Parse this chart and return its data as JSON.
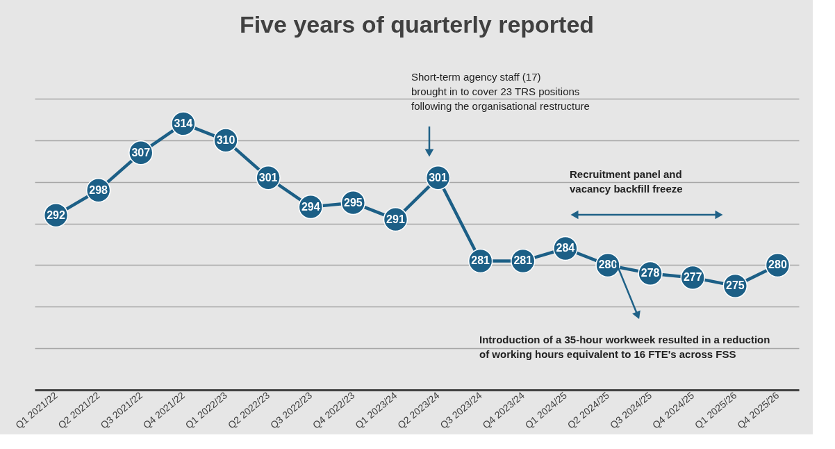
{
  "chart_data": {
    "type": "line",
    "title": "Five years of quarterly reported",
    "categories": [
      "Q1 2021/22",
      "Q2 2021/22",
      "Q3 2021/22",
      "Q4 2021/22",
      "Q1 2022/23",
      "Q2 2022/23",
      "Q3 2022/23",
      "Q4 2022/23",
      "Q1 2023/24",
      "Q2 2023/24",
      "Q3 2023/24",
      "Q4 2023/24",
      "Q1 2024/25",
      "Q2 2024/25",
      "Q3 2024/25",
      "Q4 2024/25",
      "Q1 2025/26",
      "Q4 2025/26"
    ],
    "series": [
      {
        "color": "#1c5f86",
        "values": [
          292,
          298,
          307,
          314,
          310,
          301,
          294,
          295,
          291,
          301,
          281,
          281,
          284,
          280,
          278,
          277,
          275,
          280
        ]
      }
    ],
    "ylim": [
      250,
      320
    ],
    "yticks": [
      {
        "value": 250,
        "label": null
      },
      {
        "value": 260,
        "label": null
      },
      {
        "value": 270,
        "label": null
      },
      {
        "value": 280,
        "label": null
      },
      {
        "value": 290,
        "label": null
      },
      {
        "value": 300,
        "label": null
      },
      {
        "value": 310,
        "label": null
      },
      {
        "value": 320,
        "label": null
      }
    ],
    "tick_labels": "x",
    "grid": "y",
    "marker": "circle",
    "line_style": "solid",
    "data_labels": true,
    "annotations": [
      "Short-term agency staff (17)\nbrought in to cover 23 TRS positions\nfollowing the organisational restructure",
      "Recruitment panel and\nvacancy backfill freeze",
      "Introduction of a 35-hour workweek resulted in a reduction\nof working hours equivalent to 16 FTE's across FSS"
    ]
  }
}
